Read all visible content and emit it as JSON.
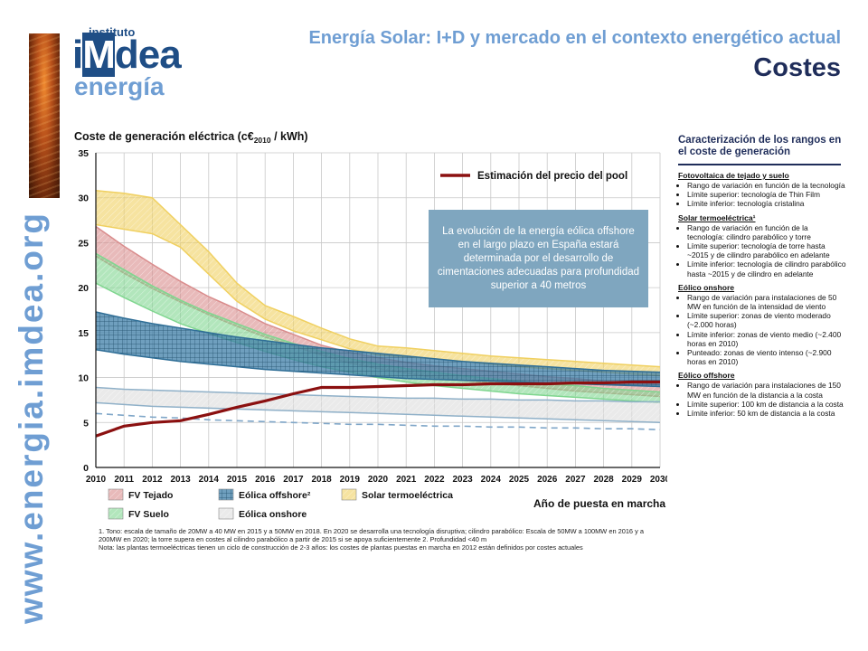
{
  "header": {
    "logo_top": "instituto",
    "logo_i": "i",
    "logo_m": "M",
    "logo_dea": "dea",
    "logo_bottom": "energía",
    "subtitle": "Energía Solar: I+D y mercado en el contexto energético actual",
    "title": "Costes",
    "url": "www.energia.imdea.org"
  },
  "colors": {
    "fv_tejado": "#d98c8c",
    "eolica_offshore": "#3f7fa8",
    "solar_termo": "#f0d060",
    "fv_suelo": "#7fd68f",
    "eolica_onshore": "#dcdcdc",
    "pool": "#8b1010",
    "accent": "#1f4e86",
    "callout": "#7fa6bf"
  },
  "chart_data": {
    "type": "area",
    "title": "Coste de generación eléctrica (c€2010 / kWh)",
    "title_main": "Coste de generación eléctrica (c€",
    "title_sub": "2010",
    "title_end": " / kWh)",
    "xlabel": "Año de puesta en marcha",
    "x": [
      2010,
      2011,
      2012,
      2013,
      2014,
      2015,
      2016,
      2017,
      2018,
      2019,
      2020,
      2021,
      2022,
      2023,
      2024,
      2025,
      2026,
      2027,
      2028,
      2029,
      2030
    ],
    "x_tick_labels": [
      "2010",
      "2011",
      "2012",
      "2013",
      "2014",
      "2015",
      "2016",
      "2017",
      "2018",
      "2019",
      "2020",
      "2021",
      "2022",
      "2023",
      "2024",
      "2025",
      "2026",
      "2027",
      "2028",
      "2029",
      "2030"
    ],
    "ylim": [
      0,
      35
    ],
    "y_ticks": [
      0,
      5,
      10,
      15,
      20,
      25,
      30,
      35
    ],
    "y_tick_labels": [
      "0",
      "5",
      "10",
      "15",
      "20",
      "25",
      "30",
      "35"
    ],
    "grid": true,
    "series": [
      {
        "name": "Solar termoeléctrica",
        "key": "solar_termo",
        "upper": [
          30.8,
          30.5,
          30.0,
          27.0,
          24.0,
          20.5,
          18.0,
          16.8,
          15.5,
          14.3,
          13.5,
          13.3,
          13.0,
          12.7,
          12.4,
          12.2,
          12.0,
          11.8,
          11.6,
          11.4,
          11.2
        ],
        "lower": [
          27.0,
          26.5,
          26.0,
          24.5,
          21.5,
          18.5,
          16.5,
          15.2,
          14.2,
          13.2,
          12.5,
          12.3,
          12.1,
          11.8,
          11.5,
          11.2,
          11.0,
          10.8,
          10.6,
          10.4,
          10.2
        ]
      },
      {
        "name": "FV Tejado",
        "key": "fv_tejado",
        "upper": [
          26.8,
          24.6,
          22.6,
          20.7,
          19.0,
          17.6,
          16.0,
          14.8,
          13.6,
          12.8,
          12.2,
          11.7,
          11.3,
          11.0,
          10.7,
          10.4,
          10.1,
          9.9,
          9.6,
          9.4,
          9.2
        ],
        "lower": [
          23.5,
          21.6,
          19.9,
          18.4,
          17.0,
          15.7,
          14.5,
          13.5,
          12.5,
          11.6,
          11.0,
          10.5,
          10.0,
          9.7,
          9.4,
          9.1,
          8.8,
          8.5,
          8.3,
          8.1,
          7.9
        ]
      },
      {
        "name": "FV Suelo",
        "key": "fv_suelo",
        "upper": [
          23.8,
          22.0,
          20.2,
          18.6,
          17.2,
          16.0,
          14.8,
          13.8,
          12.9,
          12.1,
          11.5,
          11.0,
          10.6,
          10.2,
          9.9,
          9.6,
          9.3,
          9.1,
          8.8,
          8.6,
          8.4
        ],
        "lower": [
          20.5,
          18.9,
          17.4,
          16.0,
          14.9,
          13.9,
          12.9,
          12.0,
          11.2,
          10.6,
          10.0,
          9.5,
          9.1,
          8.8,
          8.5,
          8.2,
          8.0,
          7.8,
          7.6,
          7.4,
          7.2
        ]
      },
      {
        "name": "Eólica offshore²",
        "key": "eolica_offshore",
        "upper": [
          17.3,
          16.6,
          16.0,
          15.5,
          15.0,
          14.5,
          14.1,
          13.7,
          13.3,
          13.0,
          12.7,
          12.4,
          12.1,
          11.8,
          11.6,
          11.4,
          11.2,
          11.0,
          10.8,
          10.7,
          10.6
        ],
        "lower": [
          13.1,
          12.6,
          12.2,
          11.8,
          11.5,
          11.2,
          10.9,
          10.7,
          10.5,
          10.3,
          10.1,
          9.9,
          9.8,
          9.7,
          9.6,
          9.5,
          9.4,
          9.3,
          9.2,
          9.1,
          9.0
        ]
      },
      {
        "name": "Eólica onshore",
        "key": "eolica_onshore",
        "upper": [
          8.9,
          8.7,
          8.6,
          8.5,
          8.4,
          8.3,
          8.2,
          8.1,
          8.0,
          7.9,
          7.8,
          7.7,
          7.7,
          7.6,
          7.6,
          7.5,
          7.5,
          7.4,
          7.4,
          7.3,
          7.3
        ],
        "lower": [
          7.2,
          7.0,
          6.8,
          6.7,
          6.6,
          6.5,
          6.4,
          6.3,
          6.2,
          6.1,
          6.0,
          5.9,
          5.8,
          5.7,
          5.6,
          5.5,
          5.4,
          5.3,
          5.2,
          5.1,
          5.0
        ],
        "punteado": [
          6.0,
          5.8,
          5.6,
          5.5,
          5.3,
          5.2,
          5.1,
          5.0,
          4.9,
          4.8,
          4.8,
          4.7,
          4.6,
          4.6,
          4.5,
          4.5,
          4.4,
          4.4,
          4.3,
          4.3,
          4.2
        ]
      },
      {
        "name": "Estimación del precio del pool",
        "key": "pool",
        "type": "line",
        "values": [
          3.5,
          4.6,
          5.0,
          5.2,
          5.9,
          6.7,
          7.4,
          8.2,
          8.9,
          8.9,
          9.0,
          9.1,
          9.2,
          9.2,
          9.3,
          9.3,
          9.3,
          9.4,
          9.4,
          9.5,
          9.5
        ]
      }
    ],
    "legend": {
      "pool_label": "Estimación del precio del pool",
      "items": [
        {
          "label": "FV Tejado",
          "key": "fv_tejado"
        },
        {
          "label": "Eólica offshore²",
          "key": "eolica_offshore"
        },
        {
          "label": "Solar termoeléctrica",
          "key": "solar_termo"
        },
        {
          "label": "FV Suelo",
          "key": "fv_suelo"
        },
        {
          "label": "Eólica onshore",
          "key": "eolica_onshore"
        }
      ]
    },
    "annotation": "La evolución de la energía eólica offshore en el largo plazo en España estará determinada por el desarrollo de cimentaciones adecuadas para profundidad superior a 40 metros"
  },
  "notes": {
    "line1": "1. Tono: escala de tamaño de 20MW a 40 MW en 2015 y a 50MW en 2018. En 2020 se desarrolla una tecnología disruptiva; cilindro parabólico: Escala de 50MW a 100MW en 2016 y a 200MW en 2020; la torre supera en costes al cilindro parabólico a partir de 2015 si se apoya suficientemente 2. Profundidad <40 m",
    "line2": "Nota: las plantas termoeléctricas tienen un ciclo de construcción de 2-3 años: los costes de plantas puestas en marcha en 2012 están definidos por costes actuales"
  },
  "panel": {
    "title": "Caracterización de los rangos en el coste de generación",
    "sections": [
      {
        "heading": "Fotovoltaica de tejado y suelo",
        "items": [
          "Rango de variación en función de la tecnología",
          "Límite superior: tecnología de Thin Film",
          "Límite inferior: tecnología cristalina"
        ]
      },
      {
        "heading": "Solar termoeléctrica¹",
        "items": [
          "Rango de variación en función de la tecnología: cilindro parabólico y torre",
          "Límite superior: tecnología de torre hasta ~2015 y de cilindro parabólico en adelante",
          "Límite inferior: tecnología de cilindro parabólico hasta ~2015 y de cilindro en adelante"
        ]
      },
      {
        "heading": "Eólico onshore",
        "items": [
          "Rango de variación para instalaciones de 50 MW en función de la intensidad de viento",
          "Límite superior: zonas de viento moderado (~2.000 horas)",
          "Límite inferior: zonas de viento medio (~2.400 horas en 2010)",
          "Punteado: zonas de viento intenso (~2.900 horas en 2010)"
        ]
      },
      {
        "heading": "Eólico offshore",
        "items": [
          "Rango de variación para instalaciones de 150 MW en función de la distancia a la costa",
          "Límite superior: 100 km de distancia a la costa",
          "Límite inferior: 50 km de distancia a la costa"
        ]
      }
    ]
  }
}
